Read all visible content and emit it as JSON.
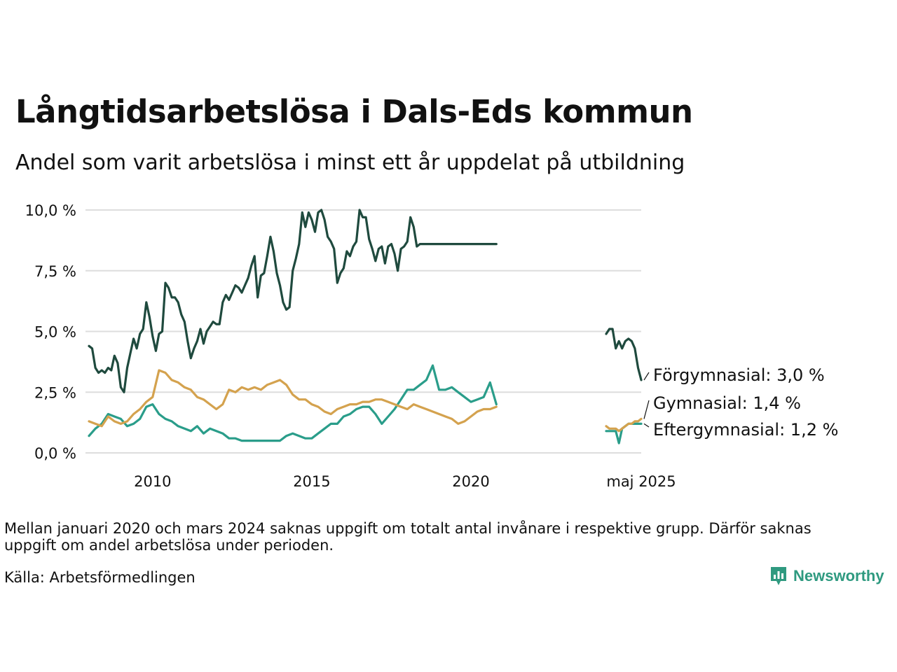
{
  "title": "Långtidsarbetslösa i Dals-Eds kommun",
  "subtitle": "Andel som varit arbetslösa i minst ett år uppdelat på utbildning",
  "note": "Mellan januari 2020 och mars 2024 saknas uppgift om totalt antal invånare i respektive grupp. Därför saknas uppgift om andel arbetslösa under perioden.",
  "source": "Källa: Arbetsförmedlingen",
  "brand": "Newsworthy",
  "colors": {
    "forgymnasial": "#1f4a3e",
    "gymnasial": "#d4a24e",
    "eftergymnasial": "#2a9d8a",
    "grid": "#dddddd"
  },
  "chart_data": {
    "type": "line",
    "y_ticks": [
      "0,0 %",
      "2,5 %",
      "5,0 %",
      "7,5 %",
      "10,0 %"
    ],
    "ylim": [
      0,
      10
    ],
    "x_ticks": [
      "2010",
      "2015",
      "2020",
      "maj 2025"
    ],
    "grid": true,
    "series": [
      {
        "name": "Förgymnasial",
        "end_label": "Förgymnasial: 3,0 %",
        "segments": [
          {
            "x": [
              2008.0,
              2008.1,
              2008.2,
              2008.3,
              2008.4,
              2008.5,
              2008.6,
              2008.7,
              2008.8,
              2008.9,
              2009.0,
              2009.1,
              2009.2,
              2009.3,
              2009.4,
              2009.5,
              2009.6,
              2009.7,
              2009.8,
              2009.9,
              2010.0,
              2010.1,
              2010.2,
              2010.3,
              2010.4,
              2010.5,
              2010.6,
              2010.7,
              2010.8,
              2010.9,
              2011.0,
              2011.1,
              2011.2,
              2011.3,
              2011.4,
              2011.5,
              2011.6,
              2011.7,
              2011.8,
              2011.9,
              2012.0,
              2012.1,
              2012.2,
              2012.3,
              2012.4,
              2012.5,
              2012.6,
              2012.7,
              2012.8,
              2012.9,
              2013.0,
              2013.1,
              2013.2,
              2013.3,
              2013.4,
              2013.5,
              2013.6,
              2013.7,
              2013.8,
              2013.9,
              2014.0,
              2014.1,
              2014.2,
              2014.3,
              2014.4,
              2014.5,
              2014.6,
              2014.7,
              2014.8,
              2014.9,
              2015.0,
              2015.1,
              2015.2,
              2015.3,
              2015.4,
              2015.5,
              2015.6,
              2015.7,
              2015.8,
              2015.9,
              2016.0,
              2016.1,
              2016.2,
              2016.3,
              2016.4,
              2016.5,
              2016.6,
              2016.7,
              2016.8,
              2016.9,
              2017.0,
              2017.1,
              2017.2,
              2017.3,
              2017.4,
              2017.5,
              2017.6,
              2017.7,
              2017.8,
              2017.9,
              2018.0,
              2018.1,
              2018.2,
              2018.3,
              2018.4,
              2018.5,
              2018.6,
              2018.7,
              2018.8,
              2018.9,
              2019.0,
              2019.1,
              2019.2,
              2019.3,
              2019.4,
              2019.5,
              2019.6,
              2019.7,
              2019.8,
              2019.9,
              2020.0,
              2020.1,
              2020.2,
              2020.3,
              2020.4,
              2020.5,
              2020.6,
              2020.7,
              2020.8
            ],
            "y": [
              4.4,
              4.3,
              3.5,
              3.3,
              3.4,
              3.3,
              3.5,
              3.4,
              4.0,
              3.7,
              2.7,
              2.5,
              3.5,
              4.1,
              4.7,
              4.3,
              4.9,
              5.1,
              6.2,
              5.6,
              4.8,
              4.2,
              4.9,
              5.0,
              7.0,
              6.8,
              6.4,
              6.4,
              6.2,
              5.7,
              5.4,
              4.6,
              3.9,
              4.3,
              4.6,
              5.1,
              4.5,
              5.0,
              5.2,
              5.4,
              5.3,
              5.3,
              6.2,
              6.5,
              6.3,
              6.6,
              6.9,
              6.8,
              6.6,
              6.9,
              7.2,
              7.7,
              8.1,
              6.4,
              7.3,
              7.4,
              8.1,
              8.9,
              8.3,
              7.4,
              6.9,
              6.2,
              5.9,
              6.0,
              7.5,
              8.0,
              8.6,
              9.9,
              9.3,
              9.9,
              9.6,
              9.1,
              9.9,
              10.0,
              9.6,
              8.9,
              8.7,
              8.4,
              7.0,
              7.4,
              7.6,
              8.3,
              8.1,
              8.5,
              8.7,
              10.0,
              9.7,
              9.7,
              8.8,
              8.4,
              7.9,
              8.4,
              8.5,
              7.8,
              8.5,
              8.6,
              8.2,
              7.5,
              8.4,
              8.5,
              8.7,
              9.7,
              9.3,
              8.5,
              8.6,
              8.6,
              8.6,
              8.6,
              8.6,
              8.6,
              8.6,
              8.6,
              8.6,
              8.6,
              8.6,
              8.6,
              8.6,
              8.6,
              8.6,
              8.6,
              8.6,
              8.6,
              8.6,
              8.6,
              8.6,
              8.6,
              8.6,
              8.6,
              8.6
            ]
          },
          {
            "x": [
              2024.25,
              2024.35,
              2024.45,
              2024.55,
              2024.65,
              2024.75,
              2024.85,
              2024.95,
              2025.05,
              2025.15,
              2025.25,
              2025.35
            ],
            "y": [
              4.9,
              5.1,
              5.1,
              4.3,
              4.6,
              4.3,
              4.6,
              4.7,
              4.6,
              4.3,
              3.5,
              3.0
            ]
          }
        ]
      },
      {
        "name": "Gymnasial",
        "end_label": "Gymnasial: 1,4 %",
        "segments": [
          {
            "x": [
              2008.0,
              2008.2,
              2008.4,
              2008.6,
              2008.8,
              2009.0,
              2009.2,
              2009.4,
              2009.6,
              2009.8,
              2010.0,
              2010.2,
              2010.4,
              2010.6,
              2010.8,
              2011.0,
              2011.2,
              2011.4,
              2011.6,
              2011.8,
              2012.0,
              2012.2,
              2012.4,
              2012.6,
              2012.8,
              2013.0,
              2013.2,
              2013.4,
              2013.6,
              2013.8,
              2014.0,
              2014.2,
              2014.4,
              2014.6,
              2014.8,
              2015.0,
              2015.2,
              2015.4,
              2015.6,
              2015.8,
              2016.0,
              2016.2,
              2016.4,
              2016.6,
              2016.8,
              2017.0,
              2017.2,
              2017.4,
              2017.6,
              2017.8,
              2018.0,
              2018.2,
              2018.4,
              2018.6,
              2018.8,
              2019.0,
              2019.2,
              2019.4,
              2019.6,
              2019.8,
              2020.0,
              2020.2,
              2020.4,
              2020.6,
              2020.8
            ],
            "y": [
              1.3,
              1.2,
              1.1,
              1.5,
              1.3,
              1.2,
              1.3,
              1.6,
              1.8,
              2.1,
              2.3,
              3.4,
              3.3,
              3.0,
              2.9,
              2.7,
              2.6,
              2.3,
              2.2,
              2.0,
              1.8,
              2.0,
              2.6,
              2.5,
              2.7,
              2.6,
              2.7,
              2.6,
              2.8,
              2.9,
              3.0,
              2.8,
              2.4,
              2.2,
              2.2,
              2.0,
              1.9,
              1.7,
              1.6,
              1.8,
              1.9,
              2.0,
              2.0,
              2.1,
              2.1,
              2.2,
              2.2,
              2.1,
              2.0,
              1.9,
              1.8,
              2.0,
              1.9,
              1.8,
              1.7,
              1.6,
              1.5,
              1.4,
              1.2,
              1.3,
              1.5,
              1.7,
              1.8,
              1.8,
              1.9
            ]
          },
          {
            "x": [
              2024.25,
              2024.35,
              2024.45,
              2024.55,
              2024.65,
              2024.75,
              2024.85,
              2024.95,
              2025.05,
              2025.15,
              2025.25,
              2025.35
            ],
            "y": [
              1.1,
              1.0,
              1.0,
              1.0,
              0.9,
              1.0,
              1.1,
              1.2,
              1.2,
              1.3,
              1.3,
              1.4
            ]
          }
        ]
      },
      {
        "name": "Eftergymnasial",
        "end_label": "Eftergymnasial: 1,2 %",
        "segments": [
          {
            "x": [
              2008.0,
              2008.2,
              2008.4,
              2008.6,
              2008.8,
              2009.0,
              2009.2,
              2009.4,
              2009.6,
              2009.8,
              2010.0,
              2010.2,
              2010.4,
              2010.6,
              2010.8,
              2011.0,
              2011.2,
              2011.4,
              2011.6,
              2011.8,
              2012.0,
              2012.2,
              2012.4,
              2012.6,
              2012.8,
              2013.0,
              2013.2,
              2013.4,
              2013.6,
              2013.8,
              2014.0,
              2014.2,
              2014.4,
              2014.6,
              2014.8,
              2015.0,
              2015.2,
              2015.4,
              2015.6,
              2015.8,
              2016.0,
              2016.2,
              2016.4,
              2016.6,
              2016.8,
              2017.0,
              2017.2,
              2017.4,
              2017.6,
              2017.8,
              2018.0,
              2018.2,
              2018.4,
              2018.6,
              2018.8,
              2019.0,
              2019.2,
              2019.4,
              2019.6,
              2019.8,
              2020.0,
              2020.2,
              2020.4,
              2020.6,
              2020.8
            ],
            "y": [
              0.7,
              1.0,
              1.2,
              1.6,
              1.5,
              1.4,
              1.1,
              1.2,
              1.4,
              1.9,
              2.0,
              1.6,
              1.4,
              1.3,
              1.1,
              1.0,
              0.9,
              1.1,
              0.8,
              1.0,
              0.9,
              0.8,
              0.6,
              0.6,
              0.5,
              0.5,
              0.5,
              0.5,
              0.5,
              0.5,
              0.5,
              0.7,
              0.8,
              0.7,
              0.6,
              0.6,
              0.8,
              1.0,
              1.2,
              1.2,
              1.5,
              1.6,
              1.8,
              1.9,
              1.9,
              1.6,
              1.2,
              1.5,
              1.8,
              2.2,
              2.6,
              2.6,
              2.8,
              3.0,
              3.6,
              2.6,
              2.6,
              2.7,
              2.5,
              2.3,
              2.1,
              2.2,
              2.3,
              2.9,
              2.0
            ]
          },
          {
            "x": [
              2024.25,
              2024.35,
              2024.45,
              2024.55,
              2024.65,
              2024.75,
              2024.85,
              2024.95,
              2025.05,
              2025.15,
              2025.25,
              2025.35
            ],
            "y": [
              0.9,
              0.9,
              0.9,
              0.9,
              0.4,
              1.0,
              1.1,
              1.2,
              1.2,
              1.2,
              1.2,
              1.2
            ]
          }
        ]
      }
    ]
  }
}
